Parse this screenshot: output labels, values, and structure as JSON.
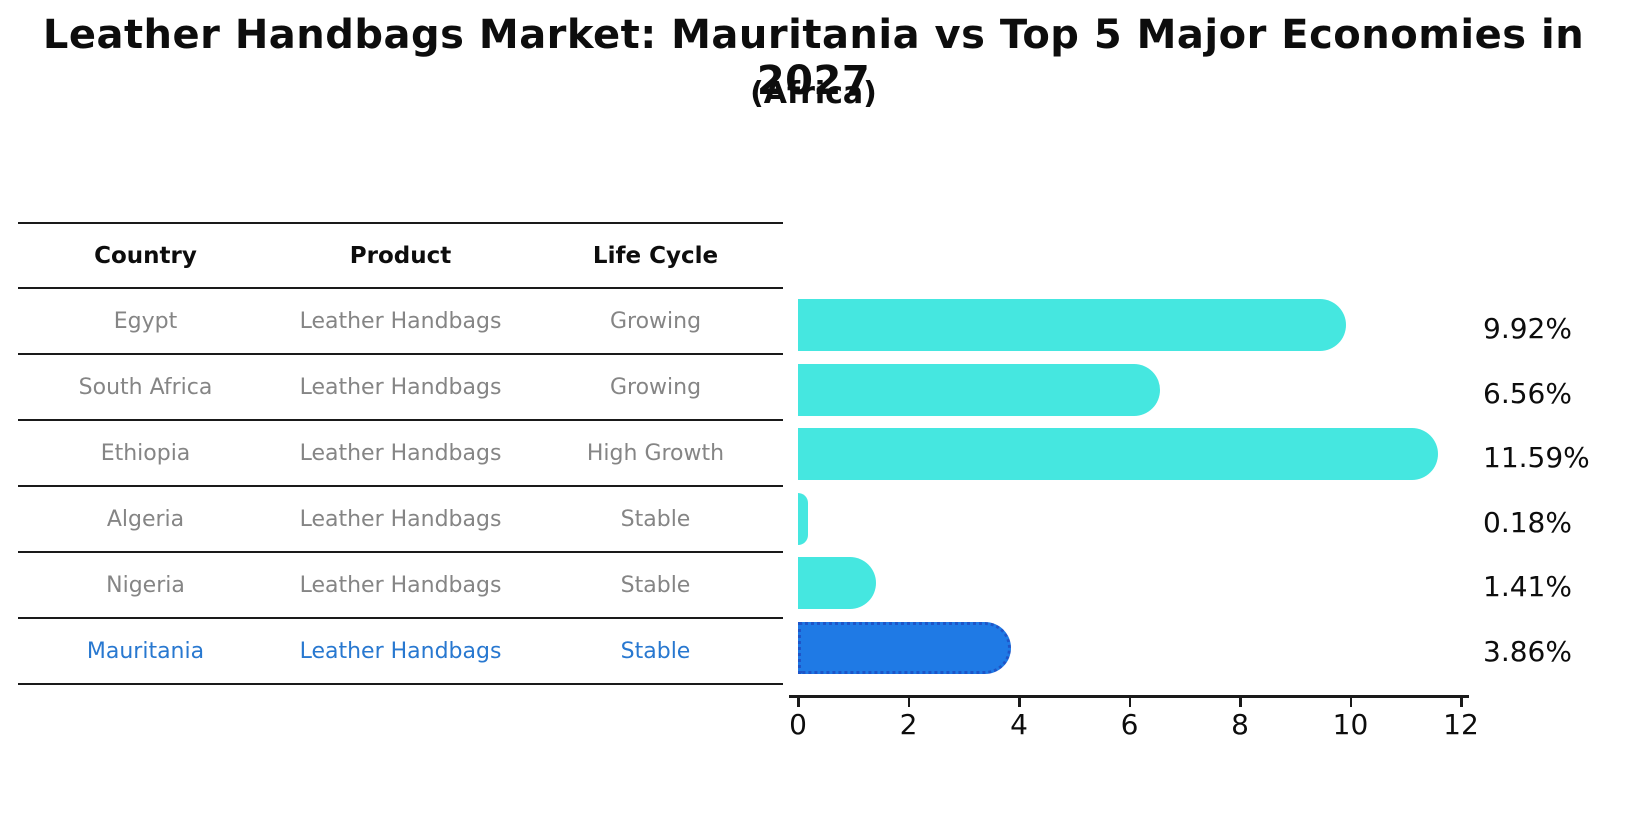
{
  "title": "Leather Handbags Market: Mauritania vs Top 5 Major Economies in 2027",
  "subtitle": "(Africa)",
  "table": {
    "headers": [
      "Country",
      "Product",
      "Life Cycle"
    ],
    "rows": [
      {
        "country": "Egypt",
        "product": "Leather Handbags",
        "life_cycle": "Growing",
        "highlight": false
      },
      {
        "country": "South Africa",
        "product": "Leather Handbags",
        "life_cycle": "Growing",
        "highlight": false
      },
      {
        "country": "Ethiopia",
        "product": "Leather Handbags",
        "life_cycle": "High Growth",
        "highlight": false
      },
      {
        "country": "Algeria",
        "product": "Leather Handbags",
        "life_cycle": "Stable",
        "highlight": false
      },
      {
        "country": "Nigeria",
        "product": "Leather Handbags",
        "life_cycle": "Stable",
        "highlight": false
      },
      {
        "country": "Mauritania",
        "product": "Leather Handbags",
        "life_cycle": "Stable",
        "highlight": true
      }
    ]
  },
  "chart_data": {
    "type": "bar",
    "orientation": "horizontal",
    "title": "Leather Handbags Market: Mauritania vs Top 5 Major Economies in 2027",
    "subtitle": "(Africa)",
    "categories": [
      "Egypt",
      "South Africa",
      "Ethiopia",
      "Algeria",
      "Nigeria",
      "Mauritania"
    ],
    "values": [
      9.92,
      6.56,
      11.59,
      0.18,
      1.41,
      3.86
    ],
    "labels": [
      "9.92%",
      "6.56%",
      "11.59%",
      "0.18%",
      "1.41%",
      "3.86%"
    ],
    "highlight_index": 5,
    "xlim": [
      0,
      12
    ],
    "xticks": [
      0,
      2,
      4,
      6,
      8,
      10,
      12
    ],
    "grid": false,
    "legend": false,
    "bar_color": "#45e7e0",
    "highlight_color": "#1f7ae5",
    "highlight_border_color": "#1e55c8"
  },
  "colors": {
    "text": "#0d0d0d",
    "muted_text": "#858585",
    "highlight_text": "#2878d0",
    "line": "#1a1a1a"
  }
}
